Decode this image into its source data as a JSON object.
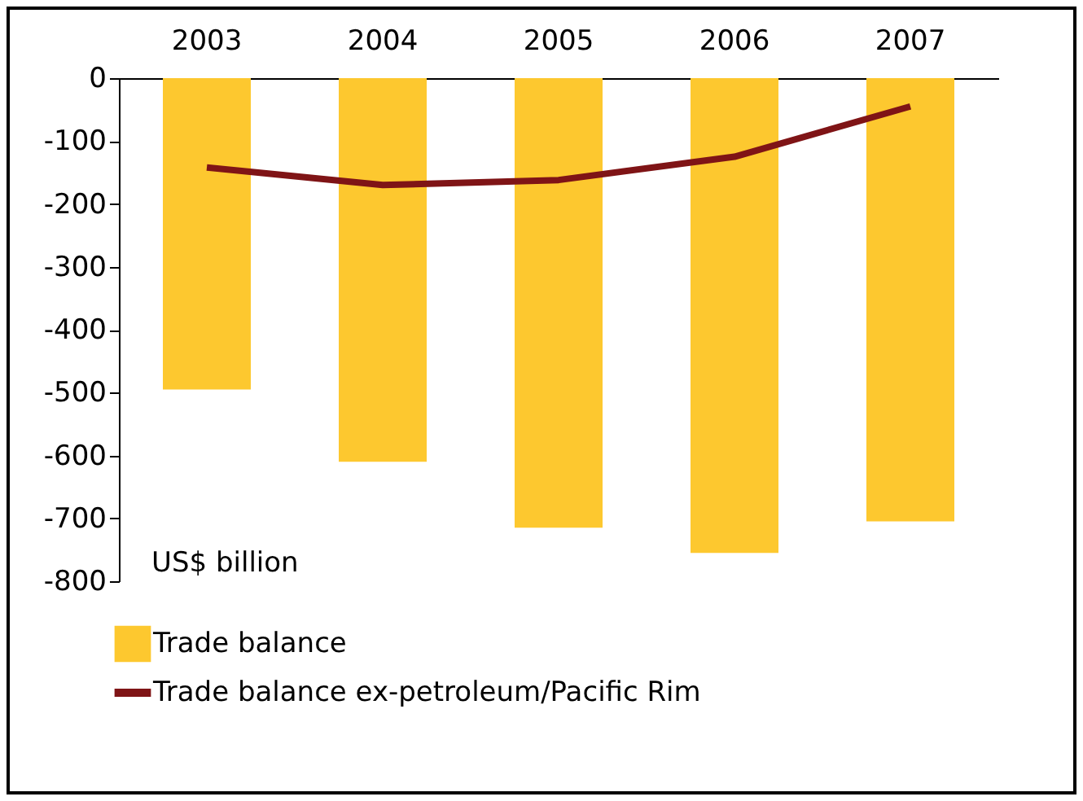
{
  "chart_data": {
    "type": "bar",
    "categories": [
      "2003",
      "2004",
      "2005",
      "2006",
      "2007"
    ],
    "series": [
      {
        "name": "Trade balance",
        "color": "#fdc82f",
        "values": [
          -495,
          -610,
          -715,
          -755,
          -705
        ]
      },
      {
        "name": "Trade balance ex-petroleum/Pacific Rim",
        "type": "line",
        "color": "#7f1416",
        "values": [
          -142,
          -170,
          -162,
          -125,
          -45
        ]
      }
    ],
    "ylim": [
      -800,
      0
    ],
    "yticks": [
      0,
      -100,
      -200,
      -300,
      -400,
      -500,
      -600,
      -700,
      -800
    ],
    "annotations": [
      "US$ billion"
    ],
    "legend": "bottom",
    "grid": false,
    "marker": "none",
    "line_style": "solid"
  }
}
